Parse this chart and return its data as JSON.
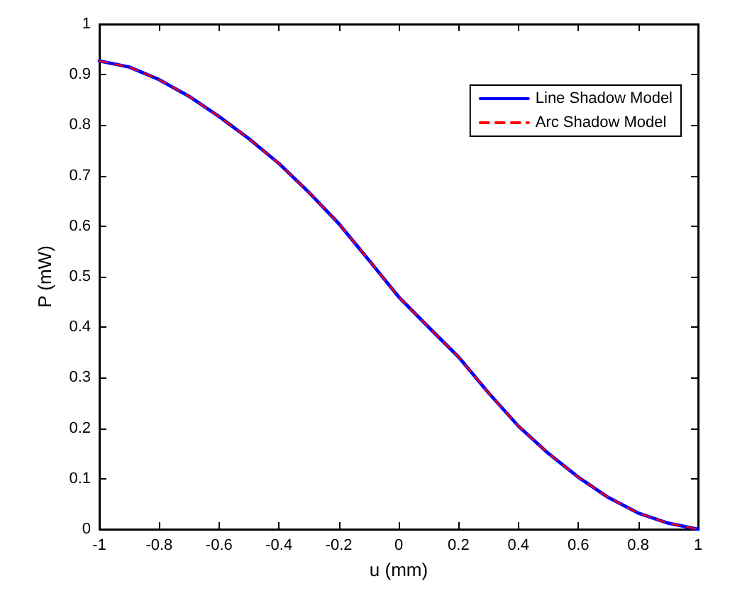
{
  "chart_data": {
    "type": "line",
    "xlabel": "u (mm)",
    "ylabel": "P (mW)",
    "x": [
      -1,
      -0.9,
      -0.8,
      -0.7,
      -0.6,
      -0.5,
      -0.4,
      -0.3,
      -0.2,
      -0.1,
      0,
      0.1,
      0.2,
      0.3,
      0.4,
      0.5,
      0.6,
      0.7,
      0.8,
      0.9,
      1
    ],
    "series": [
      {
        "name": "Line Shadow Model",
        "color": "#0000ff",
        "line_style": "solid",
        "values": [
          0.927,
          0.915,
          0.89,
          0.857,
          0.817,
          0.773,
          0.724,
          0.667,
          0.605,
          0.533,
          0.46,
          0.4,
          0.341,
          0.27,
          0.204,
          0.15,
          0.103,
          0.063,
          0.032,
          0.012,
          0
        ]
      },
      {
        "name": "Arc Shadow Model",
        "color": "#ff0000",
        "line_style": "dashed",
        "values": [
          0.927,
          0.915,
          0.89,
          0.857,
          0.817,
          0.773,
          0.724,
          0.667,
          0.605,
          0.533,
          0.46,
          0.4,
          0.341,
          0.27,
          0.204,
          0.15,
          0.103,
          0.063,
          0.032,
          0.012,
          0
        ]
      }
    ],
    "xlim": [
      -1,
      1
    ],
    "xticks": [
      -1,
      -0.8,
      -0.6,
      -0.4,
      -0.2,
      0,
      0.2,
      0.4,
      0.6,
      0.8,
      1
    ],
    "ylim": [
      0,
      1
    ],
    "yticks": [
      0,
      0.1,
      0.2,
      0.3,
      0.4,
      0.5,
      0.6,
      0.7,
      0.8,
      0.9,
      1
    ],
    "grid": false,
    "legend": "top right",
    "marker": "none"
  }
}
